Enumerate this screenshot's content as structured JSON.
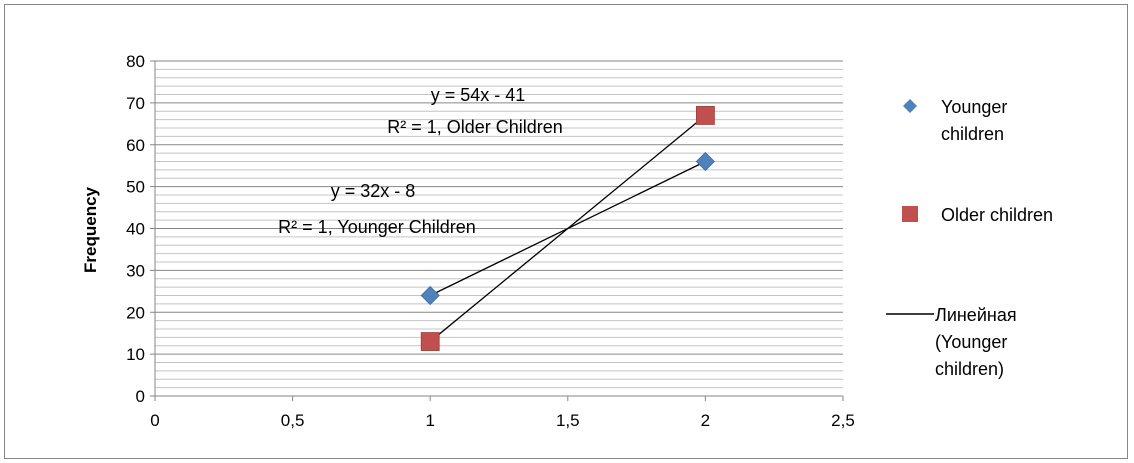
{
  "chart_data": {
    "type": "scatter",
    "title": "",
    "xlabel": "",
    "ylabel": "Frequency",
    "xlim": [
      0,
      2.5
    ],
    "ylim": [
      0,
      80
    ],
    "x_ticks": [
      "0",
      "0,5",
      "1",
      "1,5",
      "2",
      "2,5"
    ],
    "y_ticks": [
      "0",
      "10",
      "20",
      "30",
      "40",
      "50",
      "60",
      "70",
      "80"
    ],
    "grid": "horizontal minor gridlines",
    "legend_position": "right",
    "series": [
      {
        "name": "Younger children",
        "marker": "diamond",
        "color": "#4F81BD",
        "x": [
          1,
          2
        ],
        "y": [
          24,
          56
        ]
      },
      {
        "name": "Older children",
        "marker": "square",
        "color": "#C0504D",
        "x": [
          1,
          2
        ],
        "y": [
          13,
          67
        ]
      }
    ],
    "trendlines": [
      {
        "label": "Линейная (Younger children)",
        "series": "Younger children",
        "slope": 32,
        "intercept": -8,
        "x_range": [
          1,
          2
        ]
      },
      {
        "series": "Older children",
        "slope": 54,
        "intercept": -41,
        "x_range": [
          1,
          2
        ]
      }
    ],
    "annotations": [
      {
        "line1": "y = 54x - 41",
        "line2": "R² = 1, Older Children"
      },
      {
        "line1": "y = 32x - 8",
        "line2": "R² = 1, Younger Children"
      }
    ],
    "legend": {
      "entries": [
        {
          "lines": [
            "Younger",
            "children"
          ],
          "marker": "diamond",
          "color": "#4F81BD"
        },
        {
          "lines": [
            "Older children"
          ],
          "marker": "square",
          "color": "#C0504D"
        },
        {
          "lines": [
            "Линейная",
            "(Younger",
            "children)"
          ],
          "marker": "line",
          "color": "#000000"
        }
      ]
    }
  }
}
